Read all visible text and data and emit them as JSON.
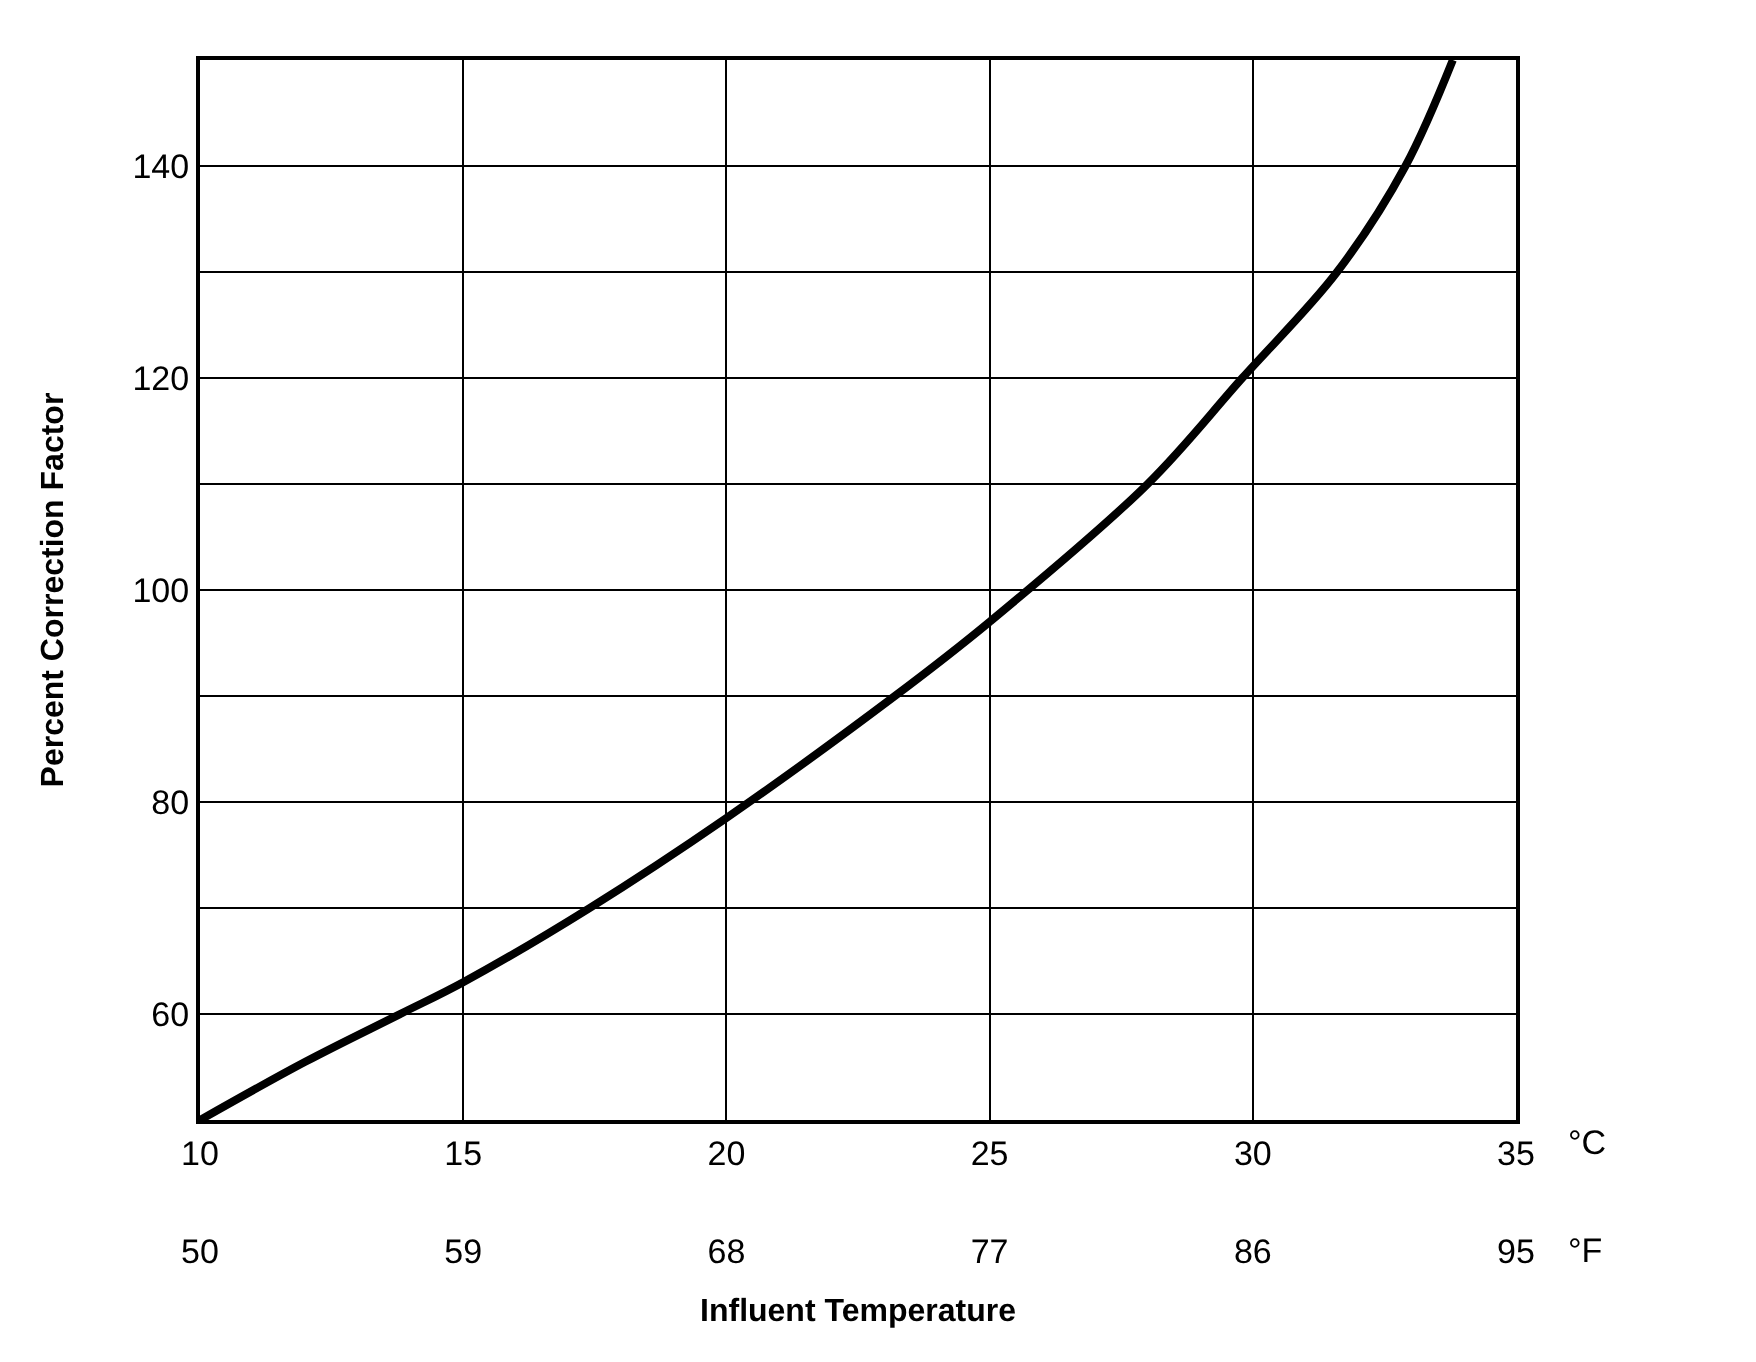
{
  "chart_data": {
    "type": "line",
    "xlabel": "Influent Temperature",
    "ylabel": "Percent Correction Factor",
    "x": [
      10,
      12,
      13.8,
      15,
      17.4,
      20,
      23.2,
      25,
      28,
      29.8,
      31.6,
      32.9,
      33.8
    ],
    "series": [
      {
        "color": "#000000",
        "values": [
          50,
          55.5,
          60,
          63,
          70,
          78.5,
          90,
          97,
          110,
          120,
          130,
          140,
          150
        ]
      }
    ],
    "xlim": [
      10,
      35
    ],
    "xticks": [
      10,
      15,
      20,
      25,
      30,
      35
    ],
    "x2lim": [
      50,
      95
    ],
    "x2ticks": [
      50,
      59,
      68,
      77,
      86,
      95
    ],
    "ylim": [
      50,
      150
    ],
    "yticks": [
      {
        "value": 50,
        "label": null
      },
      60,
      {
        "value": 70,
        "label": null
      },
      80,
      {
        "value": 90,
        "label": null
      },
      100,
      {
        "value": 110,
        "label": null
      },
      120,
      {
        "value": 130,
        "label": null
      },
      140,
      {
        "value": 150,
        "label": null
      }
    ],
    "annotations": [
      "°C",
      "°F"
    ],
    "grid": true,
    "legend": false,
    "marker": "none",
    "line_style": "solid"
  }
}
